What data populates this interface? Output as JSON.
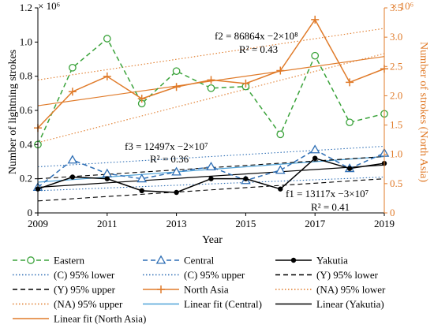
{
  "chart_data": {
    "type": "line",
    "xlabel": "Year",
    "ylabel_left": "Number of lightning strokes",
    "ylabel_right": "Number of strokes (North Asia)",
    "left_multiplier": "× 10⁶",
    "right_multiplier": "× 10⁶",
    "xlim": [
      2009,
      2019
    ],
    "ylim_left": [
      0,
      1.2
    ],
    "ylim_right": [
      0,
      3.5
    ],
    "x_ticks": [
      "2009",
      "2011",
      "2013",
      "2015",
      "2017",
      "2019"
    ],
    "y_ticks_left": [
      "0",
      "0.2",
      "0.4",
      "0.6",
      "0.8",
      "1.0",
      "1.2"
    ],
    "y_ticks_right": [
      "0",
      "0.5",
      "1.0",
      "1.5",
      "2.0",
      "2.5",
      "3.0",
      "3.5"
    ],
    "x": [
      2009,
      2010,
      2011,
      2012,
      2013,
      2014,
      2015,
      2016,
      2017,
      2018,
      2019
    ],
    "series": [
      {
        "name": "Eastern",
        "axis": "left",
        "color": "#3BA33B",
        "style": "dashed",
        "marker": "circle",
        "values": [
          0.4,
          0.85,
          1.02,
          0.64,
          0.83,
          0.73,
          0.74,
          0.46,
          0.92,
          0.53,
          0.58
        ]
      },
      {
        "name": "Central",
        "axis": "left",
        "color": "#2F6FB5",
        "style": "dashed",
        "marker": "triangle",
        "values": [
          0.15,
          0.31,
          0.23,
          0.2,
          0.24,
          0.27,
          0.19,
          0.25,
          0.37,
          0.26,
          0.35
        ]
      },
      {
        "name": "Yakutia",
        "axis": "left",
        "color": "#000000",
        "style": "solid",
        "marker": "dot",
        "values": [
          0.14,
          0.21,
          0.2,
          0.13,
          0.12,
          0.2,
          0.2,
          0.14,
          0.32,
          0.26,
          0.29
        ]
      },
      {
        "name": "North Asia",
        "axis": "right",
        "color": "#E07B2A",
        "style": "solid",
        "marker": "plus",
        "values": [
          1.45,
          2.07,
          2.33,
          1.95,
          2.15,
          2.27,
          2.21,
          2.43,
          3.3,
          2.23,
          2.46
        ]
      }
    ],
    "fit_lines": [
      {
        "name": "(C) 95% lower",
        "axis": "left",
        "color": "#2F6FB5",
        "style": "dotted",
        "y_start": 0.13,
        "y_end": 0.21
      },
      {
        "name": "(C) 95% upper",
        "axis": "left",
        "color": "#2F6FB5",
        "style": "dotted",
        "y_start": 0.27,
        "y_end": 0.39
      },
      {
        "name": "Linear fit (Central)",
        "axis": "left",
        "color": "#4FA3D8",
        "style": "solid",
        "y_start": 0.18,
        "y_end": 0.33
      },
      {
        "name": "(Y) 95% lower",
        "axis": "left",
        "color": "#000000",
        "style": "dashed",
        "y_start": 0.07,
        "y_end": 0.2
      },
      {
        "name": "(Y) 95% upper",
        "axis": "left",
        "color": "#000000",
        "style": "dashed",
        "y_start": 0.2,
        "y_end": 0.33
      },
      {
        "name": "Linear (Yakutia)",
        "axis": "left",
        "color": "#000000",
        "style": "solid",
        "y_start": 0.15,
        "y_end": 0.28
      },
      {
        "name": "(NA) 95% lower",
        "axis": "right",
        "color": "#E07B2A",
        "style": "dotted",
        "y_start": 1.2,
        "y_end": 2.72
      },
      {
        "name": "(NA) 95% upper",
        "axis": "right",
        "color": "#E07B2A",
        "style": "dotted",
        "y_start": 2.27,
        "y_end": 3.15
      },
      {
        "name": "Linear fit (North Asia)",
        "axis": "right",
        "color": "#E07B2A",
        "style": "solid",
        "y_start": 1.83,
        "y_end": 2.67
      }
    ],
    "annotations": [
      {
        "id": "f2",
        "line1": "f2 = 86864x −2×10⁸",
        "line2": "R² = 0.43"
      },
      {
        "id": "f3",
        "line1": "f3 = 12497x −2×10⁷",
        "line2": "R² = 0.36"
      },
      {
        "id": "f1",
        "line1": "f1 = 13117x −3×10⁷",
        "line2": "R² = 0.41"
      }
    ],
    "legend": [
      {
        "label": "Eastern",
        "color": "#3BA33B",
        "style": "dashed",
        "marker": "circle"
      },
      {
        "label": "Central",
        "color": "#2F6FB5",
        "style": "dashed",
        "marker": "triangle"
      },
      {
        "label": "Yakutia",
        "color": "#000000",
        "style": "solid",
        "marker": "dot"
      },
      {
        "label": "(C) 95% lower",
        "color": "#2F6FB5",
        "style": "dotted",
        "marker": "none"
      },
      {
        "label": "(C) 95% upper",
        "color": "#2F6FB5",
        "style": "dotted",
        "marker": "none"
      },
      {
        "label": "(Y) 95% lower",
        "color": "#000000",
        "style": "dashed",
        "marker": "none"
      },
      {
        "label": "(Y) 95% upper",
        "color": "#000000",
        "style": "dashed",
        "marker": "none"
      },
      {
        "label": "North Asia",
        "color": "#E07B2A",
        "style": "solid",
        "marker": "plus"
      },
      {
        "label": "(NA) 95% lower",
        "color": "#E07B2A",
        "style": "dotted",
        "marker": "none"
      },
      {
        "label": "(NA) 95% upper",
        "color": "#E07B2A",
        "style": "dotted",
        "marker": "none"
      },
      {
        "label": "Linear fit (Central)",
        "color": "#4FA3D8",
        "style": "solid",
        "marker": "none"
      },
      {
        "label": "Linear (Yakutia)",
        "color": "#000000",
        "style": "solid",
        "marker": "none"
      },
      {
        "label": "Linear fit (North Asia)",
        "color": "#E07B2A",
        "style": "solid",
        "marker": "none"
      }
    ],
    "legend_position": "bottom",
    "grid": false
  }
}
